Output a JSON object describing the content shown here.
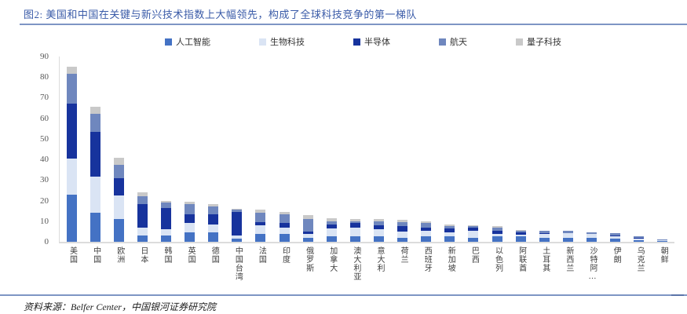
{
  "page": {
    "title": "图2: 美国和中国在关键与新兴技术指数上大幅领先，构成了全球科技竞争的第一梯队",
    "source": "资料来源：Belfer Center，中国银河证券研究院"
  },
  "colors": {
    "title_text": "#3A5BA8",
    "rule": "#7E95C4",
    "rule_dark": "#5B74A8",
    "axis_text": "#595959",
    "axis_line": "#DCDCDC",
    "legend_text": "#333333"
  },
  "chart_data": {
    "type": "bar",
    "stacked": true,
    "title": "图2: 美国和中国在关键与新兴技术指数上大幅领先，构成了全球科技竞争的第一梯队",
    "xlabel": "",
    "ylabel": "",
    "ylim": [
      0,
      90
    ],
    "yticks": [
      0,
      10,
      20,
      30,
      40,
      50,
      60,
      70,
      80,
      90
    ],
    "grid": false,
    "legend_position": "top",
    "categories": [
      "美国",
      "中国",
      "欧洲",
      "日本",
      "韩国",
      "英国",
      "德国",
      "中国台湾",
      "法国",
      "印度",
      "俄罗斯",
      "加拿大",
      "澳大利亚",
      "意大利",
      "荷兰",
      "西班牙",
      "新加坡",
      "巴西",
      "以色列",
      "阿联酋",
      "土耳其",
      "新西兰",
      "沙特阿…",
      "伊朗",
      "乌克兰",
      "朝鲜"
    ],
    "series": [
      {
        "name": "人工智能",
        "color": "#4472C4",
        "values": [
          23,
          14,
          11,
          3,
          3,
          4.5,
          4.5,
          1.5,
          4,
          4,
          2,
          2.5,
          2.5,
          2.5,
          2,
          2.5,
          2.5,
          2,
          2.5,
          2.5,
          2,
          1.8,
          1.8,
          1.5,
          0.8,
          0.3
        ]
      },
      {
        "name": "生物科技",
        "color": "#DAE4F4",
        "values": [
          17.5,
          17.5,
          11.5,
          4,
          3,
          4.5,
          4,
          1.5,
          4,
          3,
          2,
          4,
          4.5,
          3.5,
          3,
          3,
          2,
          3.5,
          1.5,
          1,
          2,
          2.4,
          1.9,
          1,
          0.8,
          0.4
        ]
      },
      {
        "name": "半导体",
        "color": "#17339D",
        "values": [
          26.5,
          22,
          8.5,
          11.5,
          10.5,
          4.5,
          5,
          11.5,
          1.5,
          2,
          1,
          2,
          2,
          2,
          2.5,
          1.5,
          2,
          1.5,
          1.5,
          1,
          0.2,
          0.1,
          0,
          0.5,
          0.3,
          0
        ]
      },
      {
        "name": "航天",
        "color": "#6F87BE",
        "values": [
          14.5,
          8.5,
          6.5,
          3.5,
          2.5,
          5,
          3.5,
          1,
          4.8,
          4.5,
          6,
          1.5,
          1,
          2,
          2,
          2,
          1,
          0.8,
          1.2,
          0.7,
          1.1,
          0.9,
          0.7,
          1.2,
          0.6,
          0.3
        ]
      },
      {
        "name": "量子科技",
        "color": "#C9C9C9",
        "values": [
          3.5,
          3.5,
          3.5,
          2,
          1,
          1,
          1.5,
          0.5,
          1.2,
          1,
          2,
          1.5,
          1,
          1,
          1.3,
          1,
          1,
          0.3,
          0.8,
          0.5,
          0,
          0,
          0.3,
          0,
          0,
          0
        ]
      }
    ]
  }
}
